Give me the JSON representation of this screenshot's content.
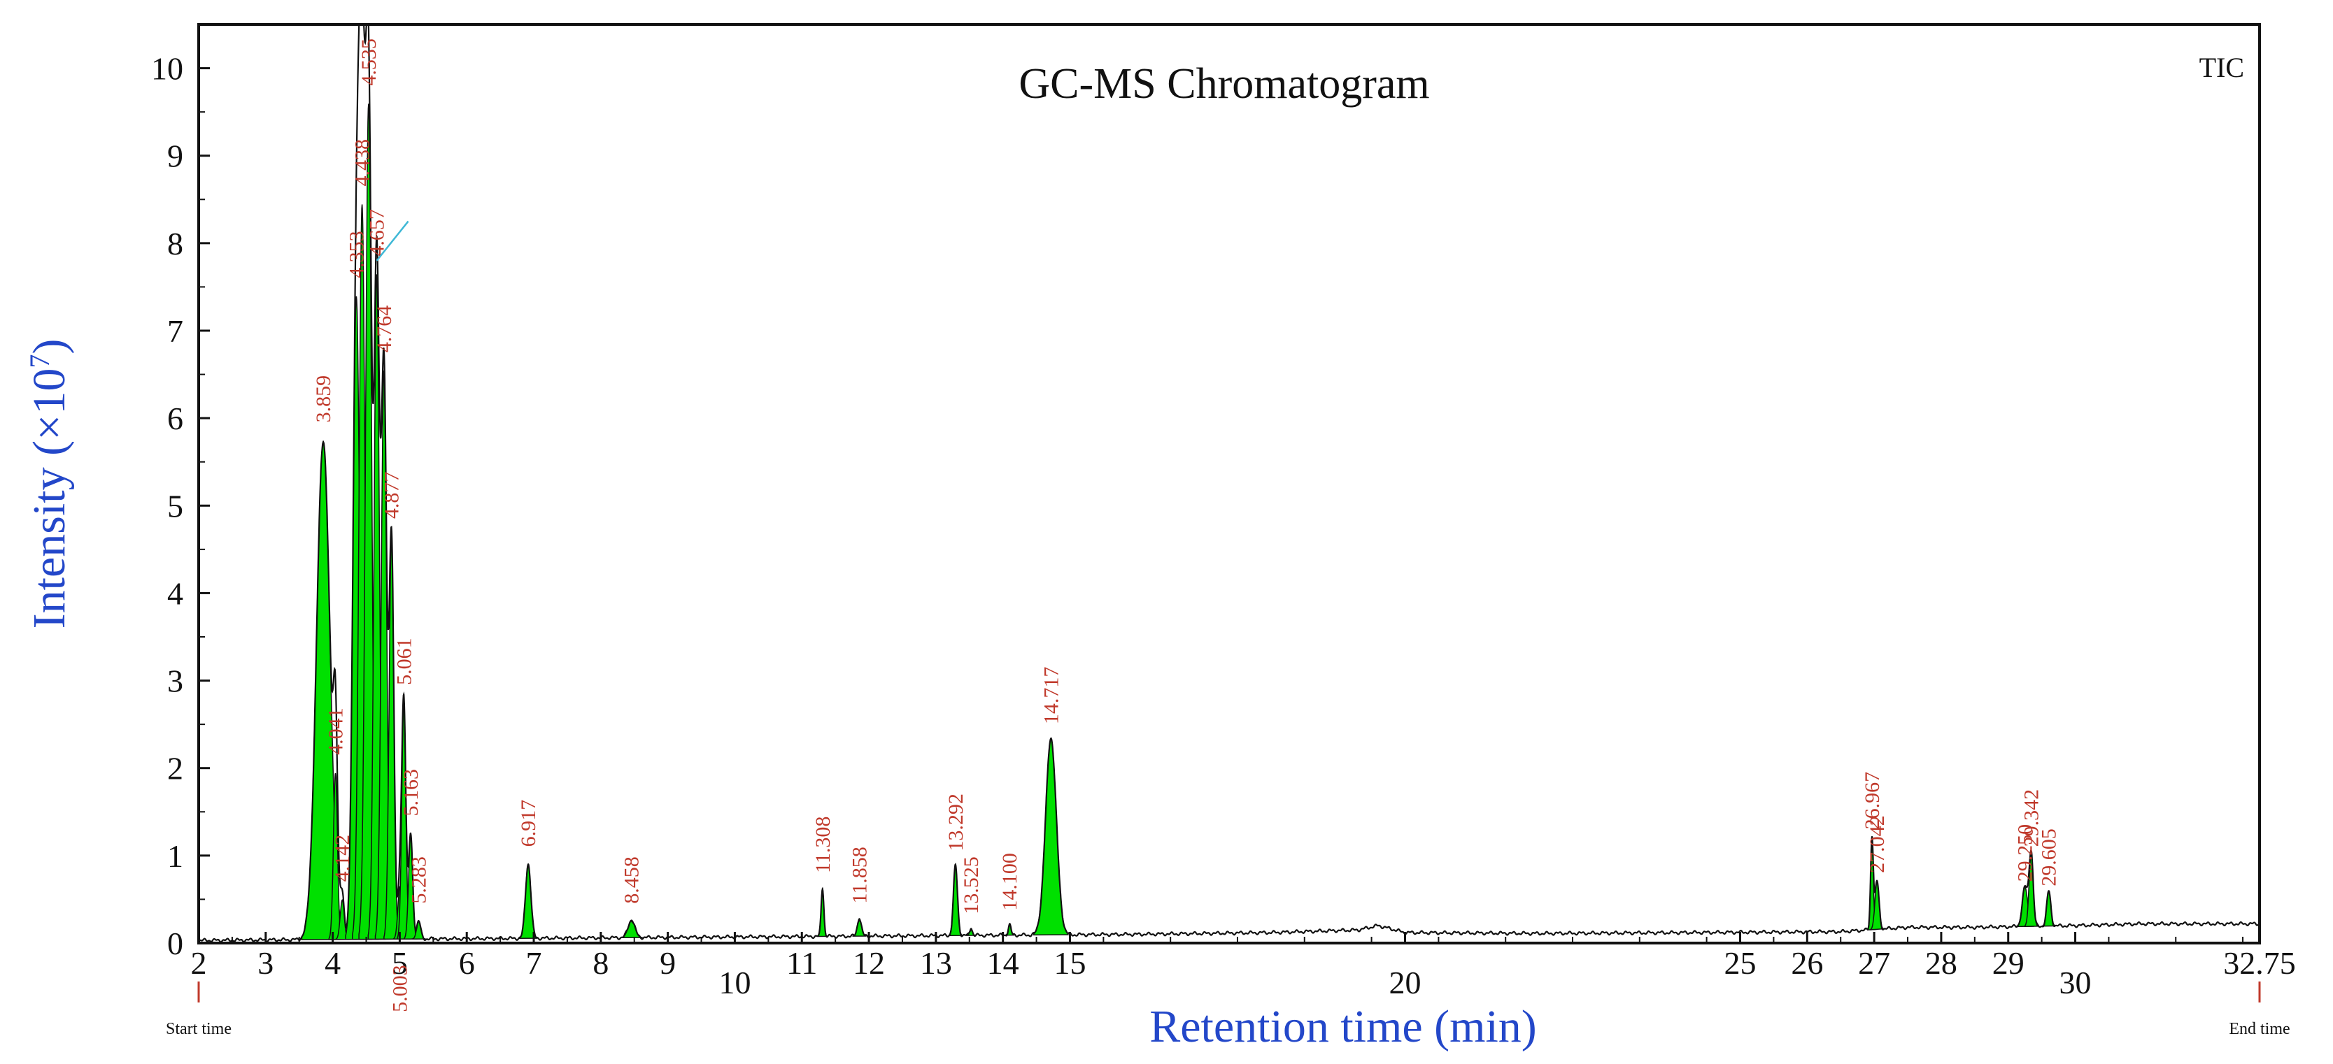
{
  "chart_data": {
    "type": "line",
    "title": "GC-MS Chromatogram",
    "trace_label": "TIC",
    "xlabel": "Retention time (min)",
    "ylabel_main": "Intensity (×10",
    "ylabel_exp": "7",
    "ylabel_close": ")",
    "xlim": [
      2,
      32.75
    ],
    "ylim": [
      0,
      10.5
    ],
    "x_ticks": [
      {
        "value": 2,
        "label": "2"
      },
      {
        "value": 3,
        "label": "3"
      },
      {
        "value": 4,
        "label": "4"
      },
      {
        "value": 5,
        "label": "5"
      },
      {
        "value": 6,
        "label": "6"
      },
      {
        "value": 7,
        "label": "7"
      },
      {
        "value": 8,
        "label": "8"
      },
      {
        "value": 9,
        "label": "9"
      },
      {
        "value": 10,
        "label": "10"
      },
      {
        "value": 11,
        "label": "11"
      },
      {
        "value": 12,
        "label": "12"
      },
      {
        "value": 13,
        "label": "13"
      },
      {
        "value": 14,
        "label": "14"
      },
      {
        "value": 15,
        "label": "15"
      },
      {
        "value": 20,
        "label": "20"
      },
      {
        "value": 25,
        "label": "25"
      },
      {
        "value": 26,
        "label": "26"
      },
      {
        "value": 27,
        "label": "27"
      },
      {
        "value": 28,
        "label": "28"
      },
      {
        "value": 29,
        "label": "29"
      },
      {
        "value": 30,
        "label": "30"
      },
      {
        "value": 32.75,
        "label": "32.75"
      }
    ],
    "y_ticks": [
      "0",
      "1",
      "2",
      "3",
      "4",
      "5",
      "6",
      "7",
      "8",
      "9",
      "10"
    ],
    "start_marker": {
      "value": 2,
      "label": "Start time"
    },
    "end_marker": {
      "value": 32.75,
      "label": "End time"
    },
    "baseline": [
      [
        2,
        0.03
      ],
      [
        3.7,
        0.04
      ],
      [
        6,
        0.05
      ],
      [
        10,
        0.07
      ],
      [
        14,
        0.09
      ],
      [
        16,
        0.1
      ],
      [
        18,
        0.12
      ],
      [
        19.3,
        0.15
      ],
      [
        19.6,
        0.2
      ],
      [
        20,
        0.12
      ],
      [
        22,
        0.11
      ],
      [
        26.5,
        0.13
      ],
      [
        27.5,
        0.18
      ],
      [
        28.5,
        0.18
      ],
      [
        30,
        0.2
      ],
      [
        31,
        0.22
      ],
      [
        32.75,
        0.22
      ]
    ],
    "peaks": [
      {
        "rt": 3.859,
        "height": 5.7,
        "width": 0.1,
        "label": "3.859",
        "label_y": 5.95
      },
      {
        "rt": 4.041,
        "height": 1.9,
        "width": 0.03,
        "label": "4.041",
        "label_y": 2.15
      },
      {
        "rt": 4.142,
        "height": 0.45,
        "width": 0.03,
        "label": "4.142",
        "label_y": 0.7
      },
      {
        "rt": 4.353,
        "height": 7.35,
        "width": 0.05,
        "label": "4.353",
        "label_y": 7.6
      },
      {
        "rt": 4.438,
        "height": 8.4,
        "width": 0.045,
        "label": "4.438",
        "label_y": 8.65
      },
      {
        "rt": 4.535,
        "height": 9.55,
        "width": 0.045,
        "label": "4.535",
        "label_y": 9.8
      },
      {
        "rt": 4.657,
        "height": 7.6,
        "width": 0.04,
        "label": "4.657",
        "label_y": 7.85
      },
      {
        "rt": 4.764,
        "height": 6.5,
        "width": 0.04,
        "label": "4.764",
        "label_y": 6.75
      },
      {
        "rt": 4.877,
        "height": 4.6,
        "width": 0.035,
        "label": "4.877",
        "label_y": 4.85
      },
      {
        "rt": 5.003,
        "height": 0.6,
        "width": 0.03,
        "label": "5.003",
        "label_y": -0.25
      },
      {
        "rt": 5.061,
        "height": 2.7,
        "width": 0.03,
        "label": "5.061",
        "label_y": 2.95
      },
      {
        "rt": 5.163,
        "height": 1.2,
        "width": 0.03,
        "label": "5.163",
        "label_y": 1.45
      },
      {
        "rt": 5.283,
        "height": 0.2,
        "width": 0.03,
        "label": "5.283",
        "label_y": 0.45
      },
      {
        "rt": 6.917,
        "height": 0.85,
        "width": 0.04,
        "label": "6.917",
        "label_y": 1.1
      },
      {
        "rt": 8.458,
        "height": 0.2,
        "width": 0.05,
        "label": "8.458",
        "label_y": 0.45
      },
      {
        "rt": 11.308,
        "height": 0.55,
        "width": 0.02,
        "label": "11.308",
        "label_y": 0.8
      },
      {
        "rt": 11.858,
        "height": 0.2,
        "width": 0.03,
        "label": "11.858",
        "label_y": 0.45
      },
      {
        "rt": 13.292,
        "height": 0.8,
        "width": 0.03,
        "label": "13.292",
        "label_y": 1.05
      },
      {
        "rt": 13.525,
        "height": 0.08,
        "width": 0.02,
        "label": "13.525",
        "label_y": 0.33
      },
      {
        "rt": 14.1,
        "height": 0.12,
        "width": 0.02,
        "label": "14.100",
        "label_y": 0.37
      },
      {
        "rt": 14.717,
        "height": 2.25,
        "width": 0.08,
        "label": "14.717",
        "label_y": 2.5
      },
      {
        "rt": 26.967,
        "height": 1.05,
        "width": 0.02,
        "label": "26.967",
        "label_y": 1.3
      },
      {
        "rt": 27.042,
        "height": 0.55,
        "width": 0.03,
        "label": "27.042",
        "label_y": 0.8
      },
      {
        "rt": 29.25,
        "height": 0.45,
        "width": 0.04,
        "label": "29.250",
        "label_y": 0.7
      },
      {
        "rt": 29.342,
        "height": 0.85,
        "width": 0.03,
        "label": "29.342",
        "label_y": 1.1
      },
      {
        "rt": 29.605,
        "height": 0.4,
        "width": 0.03,
        "label": "29.605",
        "label_y": 0.65
      }
    ],
    "colors": {
      "fill": "#00e000",
      "trace": "#111111",
      "peak_label": "#c0392b",
      "axis_title": "#2347c9",
      "marker": "#c0392b",
      "leader": "#3fb8d6"
    }
  }
}
